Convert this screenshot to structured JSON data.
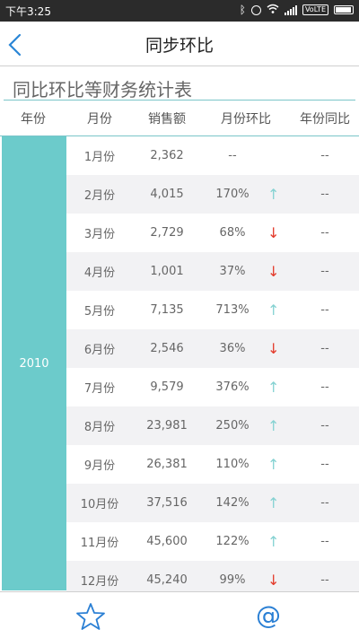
{
  "status": {
    "time": "下午3:25",
    "volte": "VoLTE"
  },
  "header": {
    "title": "同步环比",
    "back_icon": "chevron-left-icon"
  },
  "section": {
    "title": "同比环比等财务统计表"
  },
  "table": {
    "columns": [
      "年份",
      "月份",
      "销售额",
      "月份环比",
      "年份同比"
    ],
    "year": "2010",
    "rows": [
      {
        "month": "1月份",
        "sales": "2,362",
        "mom": "--",
        "trend": "",
        "yoy": "--"
      },
      {
        "month": "2月份",
        "sales": "4,015",
        "mom": "170%",
        "trend": "up",
        "yoy": "--"
      },
      {
        "month": "3月份",
        "sales": "2,729",
        "mom": "68%",
        "trend": "down",
        "yoy": "--"
      },
      {
        "month": "4月份",
        "sales": "1,001",
        "mom": "37%",
        "trend": "down",
        "yoy": "--"
      },
      {
        "month": "5月份",
        "sales": "7,135",
        "mom": "713%",
        "trend": "up",
        "yoy": "--"
      },
      {
        "month": "6月份",
        "sales": "2,546",
        "mom": "36%",
        "trend": "down",
        "yoy": "--"
      },
      {
        "month": "7月份",
        "sales": "9,579",
        "mom": "376%",
        "trend": "up",
        "yoy": "--"
      },
      {
        "month": "8月份",
        "sales": "23,981",
        "mom": "250%",
        "trend": "up",
        "yoy": "--"
      },
      {
        "month": "9月份",
        "sales": "26,381",
        "mom": "110%",
        "trend": "up",
        "yoy": "--"
      },
      {
        "month": "10月份",
        "sales": "37,516",
        "mom": "142%",
        "trend": "up",
        "yoy": "--"
      },
      {
        "month": "11月份",
        "sales": "45,600",
        "mom": "122%",
        "trend": "up",
        "yoy": "--"
      },
      {
        "month": "12月份",
        "sales": "45,240",
        "mom": "99%",
        "trend": "down",
        "yoy": "--"
      }
    ]
  },
  "arrows": {
    "up": "↑",
    "down": "↓"
  },
  "tabbar": {
    "star_icon": "star-icon",
    "at": "@"
  },
  "colors": {
    "accent": "#6ccbcb",
    "up": "#86d2d2",
    "down": "#e33a2a",
    "link": "#2a7fd4"
  }
}
